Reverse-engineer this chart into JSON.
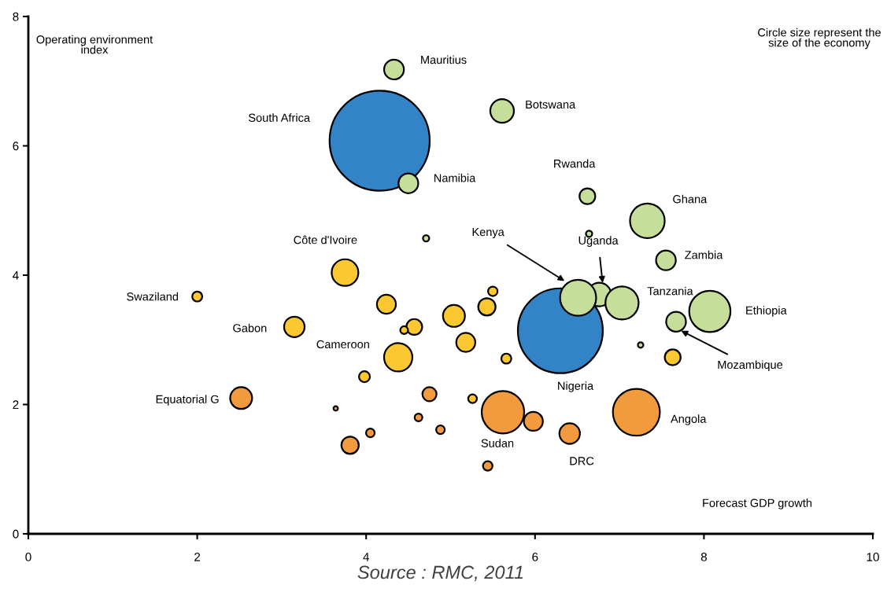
{
  "chart_data": {
    "type": "bubble",
    "xlabel": "Forecast GDP growth",
    "ylabel": "Operating environment\nindex",
    "xlim": [
      0,
      10
    ],
    "ylim": [
      0,
      8
    ],
    "xticks": [
      0,
      2,
      4,
      6,
      8,
      10
    ],
    "yticks": [
      0,
      2,
      4,
      6,
      8
    ],
    "grid": false,
    "legend": false,
    "series": [
      {
        "color": "#3384c6",
        "x": [
          4.16,
          6.3
        ],
        "values": [
          6.08,
          3.14
        ],
        "sizes": [
          1,
          0.72
        ]
      },
      {
        "color": "#f19a3e",
        "x": [
          2.52,
          3.64,
          4.75,
          4.62,
          4.05,
          3.81,
          4.88,
          5.62,
          5.98,
          6.41,
          7.2,
          5.44
        ],
        "values": [
          2.1,
          1.94,
          2.16,
          1.8,
          1.56,
          1.37,
          1.61,
          1.88,
          1.74,
          1.55,
          1.88,
          1.05
        ],
        "sizes": [
          0.048,
          0.002,
          0.02,
          0.006,
          0.0075,
          0.03,
          0.0075,
          0.18,
          0.036,
          0.042,
          0.22,
          0.009
        ]
      },
      {
        "color": "#fcc832",
        "x": [
          3.75,
          2.0,
          3.15,
          4.24,
          4.57,
          4.45,
          4.38,
          3.98,
          5.5,
          5.43,
          5.04,
          5.18,
          5.66,
          7.63,
          5.26
        ],
        "values": [
          4.04,
          3.67,
          3.2,
          3.55,
          3.2,
          3.15,
          2.73,
          2.43,
          3.75,
          3.51,
          3.37,
          2.96,
          2.71,
          2.73,
          2.09
        ],
        "sizes": [
          0.071,
          0.01,
          0.042,
          0.036,
          0.025,
          0.006,
          0.08,
          0.012,
          0.009,
          0.03,
          0.048,
          0.036,
          0.01,
          0.025,
          0.0075
        ]
      },
      {
        "color": "#c5de9a",
        "x": [
          4.33,
          4.5,
          4.71,
          5.61,
          6.62,
          6.64,
          7.33,
          7.55,
          6.76,
          6.51,
          7.03,
          8.07,
          7.67,
          7.25
        ],
        "values": [
          7.18,
          5.42,
          4.57,
          6.54,
          5.22,
          4.64,
          4.84,
          4.23,
          3.7,
          3.65,
          3.57,
          3.44,
          3.28,
          2.92
        ],
        "sizes": [
          0.039,
          0.039,
          0.004,
          0.056,
          0.025,
          0.004,
          0.12,
          0.039,
          0.056,
          0.13,
          0.11,
          0.17,
          0.039,
          0.003
        ]
      }
    ],
    "annotations": [
      {
        "text": "Mauritius",
        "x": 4.33,
        "y": 7.18
      },
      {
        "text": "Botswana",
        "x": 5.61,
        "y": 6.54
      },
      "South Africa",
      {
        "text": "Namibia",
        "x": 4.5,
        "y": 5.42
      },
      {
        "text": "Rwanda",
        "x": 6.62,
        "y": 5.22
      },
      {
        "text": "Ghana",
        "x": 7.33,
        "y": 4.84
      },
      {
        "text": "Zambia",
        "x": 7.55,
        "y": 4.23
      },
      {
        "text": "Côte d'Ivoire",
        "x": 3.75,
        "y": 4.04
      },
      {
        "text": "Kenya",
        "x": 6.35,
        "y": 3.91
      },
      {
        "text": "Uganda",
        "x": 6.8,
        "y": 3.88
      },
      {
        "text": "Tanzania",
        "x": 7.03,
        "y": 3.57
      },
      "Ethiopia",
      {
        "text": "Mozambique",
        "x": 7.73,
        "y": 3.14
      },
      "Nigeria",
      "Angola",
      "Sudan",
      {
        "text": "DRC",
        "x": 6.41,
        "y": 1.55
      },
      {
        "text": "Swaziland",
        "x": 2.0,
        "y": 3.67
      },
      {
        "text": "Gabon",
        "x": 3.15,
        "y": 3.2
      },
      {
        "text": "Cameroon",
        "x": 4.38,
        "y": 2.73
      },
      {
        "text": "Equatorial G",
        "x": 2.52,
        "y": 2.1
      },
      "Circle size represent the\nsize of the economy",
      "Source : RMC, 2011"
    ]
  }
}
